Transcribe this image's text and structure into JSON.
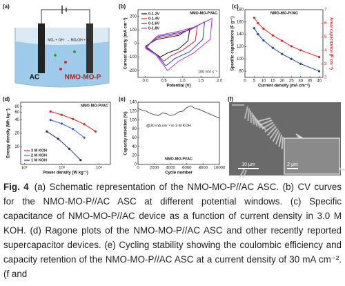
{
  "figure": {
    "panel_a": {
      "label": "(a)",
      "electrode_left": "AC",
      "electrode_right": "NMO-MO-P",
      "reaction": "MOₓ + OH⁻ → MOₓOH + e⁻"
    },
    "panel_f": {
      "label": "(f)",
      "scale_main": "10 μm",
      "scale_inset": "2 μm"
    }
  },
  "chart_data": [
    {
      "type": "line",
      "panel_label": "(b)",
      "title": "NMO-MO-P//AC",
      "annotation": "100 mV s⁻¹",
      "x_label": "Potential (V)",
      "y_label": "Current density (mA cm⁻²)",
      "xlim": [
        -0.2,
        2.0
      ],
      "xticks": [
        {
          "value": 0,
          "label": "0.0"
        },
        0.5,
        {
          "value": 1,
          "label": "1.0"
        },
        1.5,
        {
          "value": 2,
          "label": "2.0"
        }
      ],
      "ylim": [
        -250,
        250
      ],
      "yticks": [
        -200,
        -100,
        0,
        100,
        200
      ],
      "legend": "upper left",
      "series": [
        {
          "name": "0-1.2V",
          "color": "#111111",
          "x": [
            0,
            0.3,
            0.6,
            0.9,
            1.2,
            1.15,
            0.9,
            0.6,
            0.4,
            0.2,
            0
          ],
          "values": [
            -20,
            30,
            45,
            60,
            110,
            20,
            -40,
            -70,
            -100,
            -60,
            -20
          ]
        },
        {
          "name": "0-1.4V",
          "color": "#e0202a",
          "x": [
            0,
            0.3,
            0.7,
            1.0,
            1.4,
            1.35,
            1.0,
            0.7,
            0.5,
            0.25,
            0
          ],
          "values": [
            -25,
            40,
            60,
            80,
            130,
            20,
            -50,
            -90,
            -130,
            -70,
            -25
          ]
        },
        {
          "name": "0-1.6V",
          "color": "#2040d0",
          "x": [
            0,
            0.3,
            0.8,
            1.2,
            1.6,
            1.55,
            1.2,
            0.8,
            0.55,
            0.3,
            0
          ],
          "values": [
            -30,
            50,
            75,
            100,
            160,
            30,
            -60,
            -110,
            -165,
            -80,
            -30
          ]
        },
        {
          "name": "0-1.8V",
          "color": "#c030c8",
          "x": [
            0,
            0.35,
            0.9,
            1.3,
            1.8,
            1.75,
            1.3,
            0.9,
            0.6,
            0.3,
            0
          ],
          "values": [
            -35,
            60,
            90,
            120,
            185,
            30,
            -70,
            -130,
            -200,
            -90,
            -35
          ]
        }
      ]
    },
    {
      "type": "line",
      "panel_label": "(c)",
      "title": "NMO-MO-P//AC",
      "x_label": "Current density (mA cm⁻²)",
      "y_label": "Specific capacitance (F g⁻¹)",
      "y2_label": "Areal capacitance (F cm⁻²)",
      "xlim": [
        0,
        42
      ],
      "xticks": [
        0,
        5,
        10,
        15,
        20,
        25,
        30,
        35,
        40
      ],
      "ylim": [
        70,
        180
      ],
      "yticks": [
        80,
        100,
        120,
        140,
        160,
        180
      ],
      "y2lim": [
        2,
        7
      ],
      "y2ticks": [
        2,
        3,
        4,
        5,
        6,
        7
      ],
      "markers": true,
      "series": [
        {
          "name": "Specific capacitance",
          "color": "#1f3fa8",
          "x": [
            5,
            7,
            10,
            15,
            20,
            25,
            30,
            40
          ],
          "values": [
            150,
            140,
            130,
            118,
            108,
            100,
            92,
            80
          ]
        },
        {
          "name": "Areal capacitance",
          "color": "#e0202a",
          "axis": "y2",
          "x": [
            5,
            7,
            10,
            15,
            20,
            25,
            30,
            40
          ],
          "values": [
            6.4,
            6.0,
            5.6,
            5.1,
            4.7,
            4.3,
            4.0,
            3.5
          ]
        }
      ]
    },
    {
      "type": "line",
      "panel_label": "(d)",
      "title": "NMO-MO-P//AC",
      "x_label": "Power density (W kg⁻¹)",
      "y_label": "Energy density (Wh kg⁻¹)",
      "log_x": true,
      "log_y": true,
      "markers": true,
      "xlim": [
        80,
        20000
      ],
      "xticks": [
        {
          "value": 100,
          "label": "10²"
        },
        {
          "value": 1000,
          "label": "10³"
        },
        {
          "value": 10000,
          "label": "10⁴"
        }
      ],
      "ylim": [
        4,
        100
      ],
      "yticks": [
        10,
        20,
        40,
        60,
        80
      ],
      "legend": "lower left",
      "series": [
        {
          "name": "3 M KOH",
          "color": "#e0202a",
          "x": [
            500,
            1000,
            2000,
            4000,
            8000
          ],
          "values": [
            62,
            52,
            42,
            32,
            22
          ]
        },
        {
          "name": "2 M KOH",
          "color": "#3060e0",
          "x": [
            500,
            1000,
            2000,
            4000
          ],
          "values": [
            40,
            33,
            25,
            16
          ]
        },
        {
          "name": "1 M KOH",
          "color": "#1a2a80",
          "x": [
            400,
            800,
            1600,
            3200
          ],
          "values": [
            22,
            15,
            9,
            5
          ]
        }
      ]
    },
    {
      "type": "line",
      "panel_label": "(e)",
      "title": "NMO-MO-P//AC",
      "annotation": "@30 mA cm⁻² in 3 M KOH",
      "x_label": "Cycle number",
      "y_label": "Capacity retention (%)",
      "xlim": [
        0,
        10000
      ],
      "xticks": [
        0,
        2000,
        4000,
        6000,
        8000,
        10000
      ],
      "ylim": [
        0,
        140
      ],
      "yticks": [
        0,
        20,
        40,
        60,
        80,
        100,
        120,
        140
      ],
      "series": [
        {
          "name": "Capacity retention",
          "color": "#555555",
          "x": [
            0,
            500,
            1000,
            1500,
            2000,
            2500,
            3000,
            3500,
            4000,
            4500,
            5000,
            5500,
            6000,
            6500,
            7000,
            7500,
            8000,
            8500,
            9000,
            9500,
            10000
          ],
          "values": [
            126,
            122,
            120,
            115,
            112,
            110,
            116,
            114,
            110,
            112,
            118,
            120,
            128,
            132,
            126,
            124,
            120,
            116,
            112,
            108,
            104
          ]
        }
      ]
    }
  ],
  "caption": {
    "label": "Fig. 4",
    "text": "(a) Schematic representation of the NMO-MO-P//AC ASC. (b) CV curves for the NMO-MO-P//AC ASC at different potential windows. (c) Specific capacitance of NMO-MO-P//AC device as a function of current density in 3.0 M KOH. (d) Ragone plots of the NMO-MO-P//AC ASC and other recently reported supercapacitor devices. (e) Cycling stability showing the coulombic efficiency and capacity retention of the NMO-MO-P//AC ASC at a current density of 30 mA cm⁻². (f and"
  }
}
